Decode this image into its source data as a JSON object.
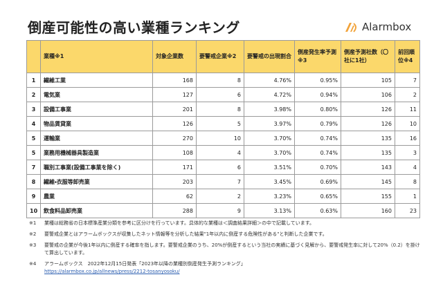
{
  "header": {
    "title": "倒産可能性の高い業種ランキング",
    "brand": "Alarmbox"
  },
  "table": {
    "columns": [
      "",
      "業種※1",
      "対象企業数",
      "要警戒企業※2",
      "要警戒の出現割合",
      "倒産発生率予測※3",
      "倒産予測社数（〇社に1社）",
      "前回順位※4"
    ],
    "rows": [
      [
        "1",
        "繊維工業",
        "168",
        "8",
        "4.76%",
        "0.95%",
        "105",
        "7"
      ],
      [
        "2",
        "電気業",
        "127",
        "6",
        "4.72%",
        "0.94%",
        "106",
        "2"
      ],
      [
        "3",
        "設備工事業",
        "201",
        "8",
        "3.98%",
        "0.80%",
        "126",
        "11"
      ],
      [
        "4",
        "物品賃貸業",
        "126",
        "5",
        "3.97%",
        "0.79%",
        "126",
        "10"
      ],
      [
        "5",
        "運輸業",
        "270",
        "10",
        "3.70%",
        "0.74%",
        "135",
        "16"
      ],
      [
        "5",
        "業務用機械器具製造業",
        "108",
        "4",
        "3.70%",
        "0.74%",
        "135",
        "3"
      ],
      [
        "7",
        "職別工事業(設備工事業を除く)",
        "171",
        "6",
        "3.51%",
        "0.70%",
        "143",
        "4"
      ],
      [
        "8",
        "繊維・衣服等卸売業",
        "203",
        "7",
        "3.45%",
        "0.69%",
        "145",
        "8"
      ],
      [
        "9",
        "農業",
        "62",
        "2",
        "3.23%",
        "0.65%",
        "155",
        "1"
      ],
      [
        "10",
        "飲食料品卸売業",
        "288",
        "9",
        "3.13%",
        "0.63%",
        "160",
        "23"
      ]
    ]
  },
  "notes": [
    {
      "mark": "※1",
      "text": "業種は総務省の日本標準産業分類を参考に区分けを行っています。具体的な業種は＜調査結果詳細＞の中で記載しています。"
    },
    {
      "mark": "※2",
      "text": "要警戒企業とはアラームボックスが収集したネット情報等を分析した結果\"1年以内に倒産する危険性がある\"と判断した企業です。"
    },
    {
      "mark": "※3",
      "text": "要警戒の企業が今後1年以内に倒産する確率を指します。要警戒企業のうち、20%が倒産するという当社の実績に基づく見解から、要警戒発生率に対して20%（0.2）を掛けて算出しています。"
    },
    {
      "mark": "※4",
      "text": "アラームボックス　2022年12月15日発表「2023年以降の業種別倒産発生予測ランキング」",
      "url": "https://alarmbox.co.jp/allnews/press/2212-tosanyosoku/"
    }
  ]
}
